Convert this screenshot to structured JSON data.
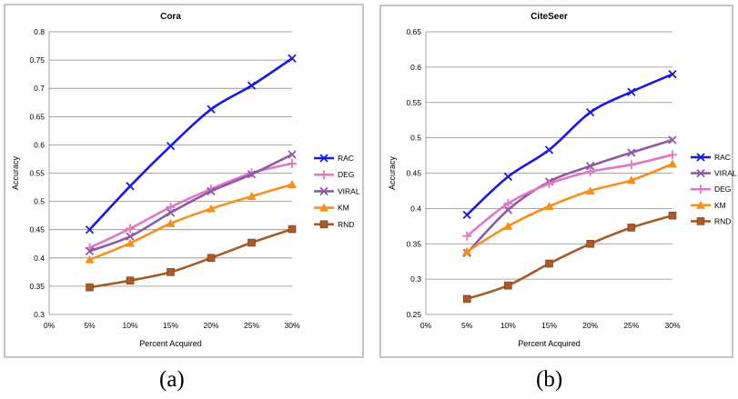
{
  "chart_data": [
    {
      "type": "line",
      "title": "Cora",
      "xlabel": "Percent Acquired",
      "ylabel": "Accuracy",
      "categories": [
        "0%",
        "5%",
        "10%",
        "15%",
        "20%",
        "25%",
        "30%"
      ],
      "yticks": [
        "0.3",
        "0.35",
        "0.4",
        "0.45",
        "0.5",
        "0.55",
        "0.6",
        "0.65",
        "0.7",
        "0.75",
        "0.8"
      ],
      "ylim": [
        0.3,
        0.8
      ],
      "grid": true,
      "legend": "right",
      "series": [
        {
          "name": "RAC",
          "color": "#1a1adb",
          "marker": "x",
          "values": [
            null,
            0.45,
            0.527,
            0.598,
            0.663,
            0.705,
            0.753
          ]
        },
        {
          "name": "DEG",
          "color": "#e377c2",
          "marker": "+",
          "values": [
            null,
            0.418,
            0.452,
            0.49,
            0.522,
            0.55,
            0.567
          ]
        },
        {
          "name": "VIRAL",
          "color": "#8e5aa8",
          "marker": "x",
          "values": [
            null,
            0.412,
            0.438,
            0.48,
            0.518,
            0.548,
            0.583
          ]
        },
        {
          "name": "KM",
          "color": "#f5901e",
          "marker": "triangle",
          "values": [
            null,
            0.397,
            0.426,
            0.461,
            0.487,
            0.509,
            0.53
          ]
        },
        {
          "name": "RND",
          "color": "#a85a2a",
          "marker": "square",
          "values": [
            null,
            0.348,
            0.36,
            0.375,
            0.4,
            0.427,
            0.451
          ]
        }
      ]
    },
    {
      "type": "line",
      "title": "CiteSeer",
      "xlabel": "Percent Acquired",
      "ylabel": "Accuracy",
      "categories": [
        "0%",
        "5%",
        "10%",
        "15%",
        "20%",
        "25%",
        "30%"
      ],
      "yticks": [
        "0.25",
        "0.3",
        "0.35",
        "0.4",
        "0.45",
        "0.5",
        "0.55",
        "0.6",
        "0.65"
      ],
      "ylim": [
        0.25,
        0.65
      ],
      "grid": true,
      "legend": "right",
      "series": [
        {
          "name": "RAC",
          "color": "#1a1adb",
          "marker": "x",
          "values": [
            null,
            0.391,
            0.445,
            0.483,
            0.536,
            0.565,
            0.59
          ]
        },
        {
          "name": "VIRAL",
          "color": "#8e5aa8",
          "marker": "x",
          "values": [
            null,
            0.337,
            0.398,
            0.438,
            0.46,
            0.479,
            0.497
          ]
        },
        {
          "name": "DEG",
          "color": "#e377c2",
          "marker": "+",
          "values": [
            null,
            0.361,
            0.407,
            0.435,
            0.452,
            0.462,
            0.476
          ]
        },
        {
          "name": "KM",
          "color": "#f5901e",
          "marker": "triangle",
          "values": [
            null,
            0.339,
            0.375,
            0.403,
            0.425,
            0.44,
            0.463
          ]
        },
        {
          "name": "RND",
          "color": "#a85a2a",
          "marker": "square",
          "values": [
            null,
            0.272,
            0.291,
            0.322,
            0.35,
            0.373,
            0.39
          ]
        }
      ]
    }
  ],
  "captions": [
    "(a)",
    "(b)"
  ]
}
